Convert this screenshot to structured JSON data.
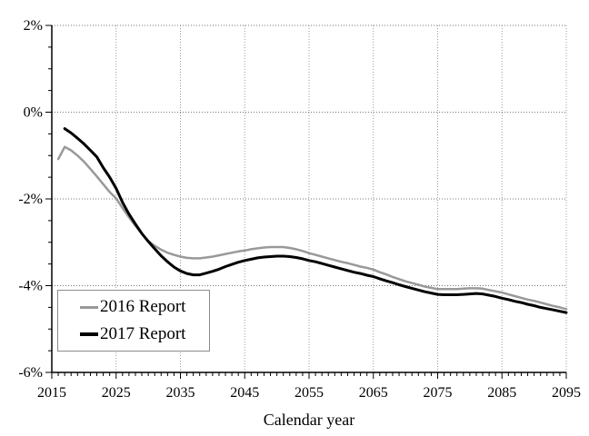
{
  "chart_data": {
    "type": "line",
    "title": "",
    "xlabel": "Calendar year",
    "ylabel": "",
    "xlim": [
      2015,
      2095
    ],
    "ylim": [
      -6,
      2
    ],
    "x_major_ticks": [
      2015,
      2025,
      2035,
      2045,
      2055,
      2065,
      2075,
      2085,
      2095
    ],
    "x_minor_step": 1,
    "y_major_ticks": [
      2,
      0,
      -2,
      -4,
      -6
    ],
    "y_tick_labels": [
      "2%",
      "0%",
      "-2%",
      "-4%",
      "-6%"
    ],
    "y_minor_step": 0.5,
    "grid": "dotted gridlines at major ticks, both axes",
    "legend_position": "inside lower-left",
    "series": [
      {
        "name": "2016 Report",
        "color": "#999999",
        "stroke_width": 2.5,
        "points": [
          [
            2016,
            -1.08
          ],
          [
            2017,
            -0.8
          ],
          [
            2018,
            -0.88
          ],
          [
            2019,
            -1.0
          ],
          [
            2020,
            -1.14
          ],
          [
            2021,
            -1.31
          ],
          [
            2022,
            -1.48
          ],
          [
            2023,
            -1.66
          ],
          [
            2024,
            -1.84
          ],
          [
            2025,
            -1.99
          ],
          [
            2026,
            -2.21
          ],
          [
            2027,
            -2.42
          ],
          [
            2028,
            -2.62
          ],
          [
            2029,
            -2.8
          ],
          [
            2030,
            -2.97
          ],
          [
            2031,
            -3.08
          ],
          [
            2032,
            -3.17
          ],
          [
            2033,
            -3.24
          ],
          [
            2034,
            -3.29
          ],
          [
            2035,
            -3.33
          ],
          [
            2036,
            -3.36
          ],
          [
            2037,
            -3.37
          ],
          [
            2038,
            -3.37
          ],
          [
            2039,
            -3.35
          ],
          [
            2040,
            -3.33
          ],
          [
            2041,
            -3.3
          ],
          [
            2042,
            -3.27
          ],
          [
            2043,
            -3.24
          ],
          [
            2044,
            -3.21
          ],
          [
            2045,
            -3.19
          ],
          [
            2046,
            -3.16
          ],
          [
            2047,
            -3.14
          ],
          [
            2048,
            -3.12
          ],
          [
            2049,
            -3.11
          ],
          [
            2050,
            -3.11
          ],
          [
            2051,
            -3.11
          ],
          [
            2052,
            -3.13
          ],
          [
            2053,
            -3.16
          ],
          [
            2054,
            -3.2
          ],
          [
            2055,
            -3.25
          ],
          [
            2056,
            -3.29
          ],
          [
            2057,
            -3.33
          ],
          [
            2058,
            -3.37
          ],
          [
            2059,
            -3.41
          ],
          [
            2060,
            -3.45
          ],
          [
            2061,
            -3.48
          ],
          [
            2062,
            -3.52
          ],
          [
            2063,
            -3.56
          ],
          [
            2064,
            -3.59
          ],
          [
            2065,
            -3.63
          ],
          [
            2066,
            -3.69
          ],
          [
            2067,
            -3.74
          ],
          [
            2068,
            -3.8
          ],
          [
            2069,
            -3.85
          ],
          [
            2070,
            -3.9
          ],
          [
            2071,
            -3.94
          ],
          [
            2072,
            -3.98
          ],
          [
            2073,
            -4.02
          ],
          [
            2074,
            -4.05
          ],
          [
            2075,
            -4.08
          ],
          [
            2076,
            -4.08
          ],
          [
            2077,
            -4.08
          ],
          [
            2078,
            -4.08
          ],
          [
            2079,
            -4.07
          ],
          [
            2080,
            -4.06
          ],
          [
            2081,
            -4.06
          ],
          [
            2082,
            -4.07
          ],
          [
            2083,
            -4.1
          ],
          [
            2084,
            -4.13
          ],
          [
            2085,
            -4.16
          ],
          [
            2086,
            -4.2
          ],
          [
            2087,
            -4.24
          ],
          [
            2088,
            -4.28
          ],
          [
            2089,
            -4.32
          ],
          [
            2090,
            -4.35
          ],
          [
            2091,
            -4.39
          ],
          [
            2092,
            -4.43
          ],
          [
            2093,
            -4.47
          ],
          [
            2094,
            -4.5
          ],
          [
            2095,
            -4.54
          ]
        ]
      },
      {
        "name": "2017 Report",
        "color": "#000000",
        "stroke_width": 3,
        "points": [
          [
            2017,
            -0.38
          ],
          [
            2018,
            -0.48
          ],
          [
            2019,
            -0.6
          ],
          [
            2020,
            -0.73
          ],
          [
            2021,
            -0.88
          ],
          [
            2022,
            -1.03
          ],
          [
            2023,
            -1.28
          ],
          [
            2024,
            -1.5
          ],
          [
            2025,
            -1.76
          ],
          [
            2026,
            -2.08
          ],
          [
            2027,
            -2.35
          ],
          [
            2028,
            -2.58
          ],
          [
            2029,
            -2.8
          ],
          [
            2030,
            -2.98
          ],
          [
            2031,
            -3.15
          ],
          [
            2032,
            -3.31
          ],
          [
            2033,
            -3.45
          ],
          [
            2034,
            -3.57
          ],
          [
            2035,
            -3.66
          ],
          [
            2036,
            -3.72
          ],
          [
            2037,
            -3.75
          ],
          [
            2038,
            -3.75
          ],
          [
            2039,
            -3.71
          ],
          [
            2040,
            -3.67
          ],
          [
            2041,
            -3.62
          ],
          [
            2042,
            -3.56
          ],
          [
            2043,
            -3.51
          ],
          [
            2044,
            -3.46
          ],
          [
            2045,
            -3.42
          ],
          [
            2046,
            -3.39
          ],
          [
            2047,
            -3.36
          ],
          [
            2048,
            -3.34
          ],
          [
            2049,
            -3.33
          ],
          [
            2050,
            -3.32
          ],
          [
            2051,
            -3.32
          ],
          [
            2052,
            -3.33
          ],
          [
            2053,
            -3.35
          ],
          [
            2054,
            -3.38
          ],
          [
            2055,
            -3.42
          ],
          [
            2056,
            -3.45
          ],
          [
            2057,
            -3.49
          ],
          [
            2058,
            -3.53
          ],
          [
            2059,
            -3.57
          ],
          [
            2060,
            -3.61
          ],
          [
            2061,
            -3.65
          ],
          [
            2062,
            -3.69
          ],
          [
            2063,
            -3.72
          ],
          [
            2064,
            -3.76
          ],
          [
            2065,
            -3.79
          ],
          [
            2066,
            -3.84
          ],
          [
            2067,
            -3.89
          ],
          [
            2068,
            -3.93
          ],
          [
            2069,
            -3.98
          ],
          [
            2070,
            -4.02
          ],
          [
            2071,
            -4.06
          ],
          [
            2072,
            -4.1
          ],
          [
            2073,
            -4.14
          ],
          [
            2074,
            -4.17
          ],
          [
            2075,
            -4.2
          ],
          [
            2076,
            -4.21
          ],
          [
            2077,
            -4.21
          ],
          [
            2078,
            -4.21
          ],
          [
            2079,
            -4.2
          ],
          [
            2080,
            -4.19
          ],
          [
            2081,
            -4.18
          ],
          [
            2082,
            -4.19
          ],
          [
            2083,
            -4.22
          ],
          [
            2084,
            -4.25
          ],
          [
            2085,
            -4.29
          ],
          [
            2086,
            -4.32
          ],
          [
            2087,
            -4.36
          ],
          [
            2088,
            -4.39
          ],
          [
            2089,
            -4.43
          ],
          [
            2090,
            -4.46
          ],
          [
            2091,
            -4.5
          ],
          [
            2092,
            -4.53
          ],
          [
            2093,
            -4.56
          ],
          [
            2094,
            -4.59
          ],
          [
            2095,
            -4.62
          ]
        ]
      }
    ]
  },
  "colors": {
    "background": "#ffffff",
    "grid": "#999999",
    "axis": "#000000",
    "tick_text": "#000000",
    "legend_border": "#8c8c8c"
  }
}
